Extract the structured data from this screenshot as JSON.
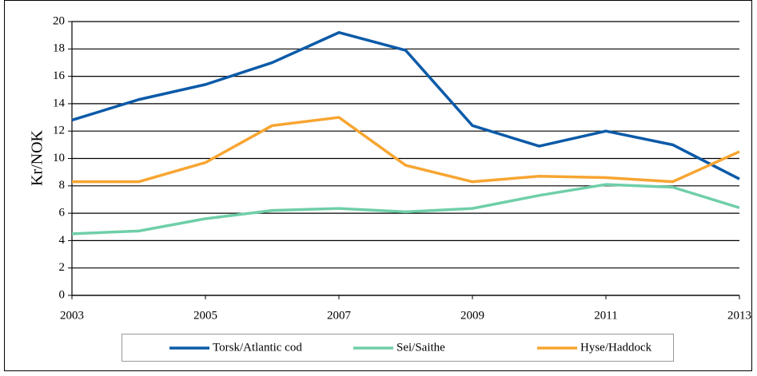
{
  "chart_data": {
    "type": "line",
    "y_label": "Kr/NOK",
    "x": [
      2003,
      2004,
      2005,
      2006,
      2007,
      2008,
      2009,
      2010,
      2011,
      2012,
      2013
    ],
    "series": [
      {
        "name": "Torsk/Atlantic cod",
        "color": "#0b5aa8",
        "values": [
          12.8,
          14.3,
          15.4,
          17.0,
          19.2,
          17.9,
          12.4,
          10.9,
          12.0,
          11.0,
          8.5
        ]
      },
      {
        "name": "Sei/Saithe",
        "color": "#6fcfa8",
        "values": [
          4.5,
          4.7,
          5.6,
          6.2,
          6.35,
          6.1,
          6.35,
          7.3,
          8.1,
          7.9,
          6.4
        ]
      },
      {
        "name": "Hyse/Haddock",
        "color": "#f7a531",
        "values": [
          8.3,
          8.3,
          9.7,
          12.4,
          13.0,
          9.5,
          8.3,
          8.7,
          8.6,
          8.3,
          10.5
        ]
      }
    ],
    "xlim": [
      2003,
      2013
    ],
    "xticks": [
      2003,
      2005,
      2007,
      2009,
      2011,
      2013
    ],
    "ylim": [
      0,
      20
    ],
    "yticks": [
      0,
      2,
      4,
      6,
      8,
      10,
      12,
      14,
      16,
      18,
      20
    ],
    "grid": true,
    "legend": "bottom"
  }
}
